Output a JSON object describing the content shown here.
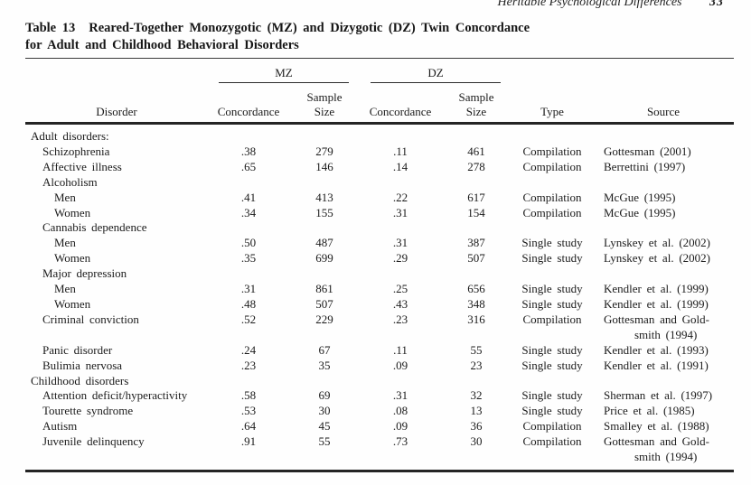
{
  "page": {
    "running_head": "Heritable Psychological Differences",
    "page_number": "33"
  },
  "table": {
    "title_label": "Table 13",
    "title_line1": "Reared-Together Monozygotic (MZ) and Dizygotic (DZ) Twin Concordance",
    "title_line2": "for Adult and Childhood Behavioral Disorders",
    "spanner_mz": "MZ",
    "spanner_dz": "DZ",
    "columns": {
      "disorder": "Disorder",
      "mz_concordance": "Concordance",
      "mz_sample_line1": "Sample",
      "mz_sample_line2": "Size",
      "dz_concordance": "Concordance",
      "dz_sample_line1": "Sample",
      "dz_sample_line2": "Size",
      "type": "Type",
      "source": "Source"
    },
    "rows": [
      {
        "kind": "section",
        "indent": 0,
        "label": "Adult disorders:"
      },
      {
        "kind": "data",
        "indent": 1,
        "label": "Schizophrenia",
        "mz_concordance": ".38",
        "mz_n": "279",
        "dz_concordance": ".11",
        "dz_n": "461",
        "type": "Compilation",
        "source_lines": [
          "Gottesman (2001)"
        ]
      },
      {
        "kind": "data",
        "indent": 1,
        "label": "Affective illness",
        "mz_concordance": ".65",
        "mz_n": "146",
        "dz_concordance": ".14",
        "dz_n": "278",
        "type": "Compilation",
        "source_lines": [
          "Berrettini (1997)"
        ]
      },
      {
        "kind": "group",
        "indent": 1,
        "label": "Alcoholism"
      },
      {
        "kind": "data",
        "indent": 2,
        "label": "Men",
        "mz_concordance": ".41",
        "mz_n": "413",
        "dz_concordance": ".22",
        "dz_n": "617",
        "type": "Compilation",
        "source_lines": [
          "McGue (1995)"
        ]
      },
      {
        "kind": "data",
        "indent": 2,
        "label": "Women",
        "mz_concordance": ".34",
        "mz_n": "155",
        "dz_concordance": ".31",
        "dz_n": "154",
        "type": "Compilation",
        "source_lines": [
          "McGue (1995)"
        ]
      },
      {
        "kind": "group",
        "indent": 1,
        "label": "Cannabis dependence"
      },
      {
        "kind": "data",
        "indent": 2,
        "label": "Men",
        "mz_concordance": ".50",
        "mz_n": "487",
        "dz_concordance": ".31",
        "dz_n": "387",
        "type": "Single study",
        "source_lines": [
          "Lynskey et al. (2002)"
        ]
      },
      {
        "kind": "data",
        "indent": 2,
        "label": "Women",
        "mz_concordance": ".35",
        "mz_n": "699",
        "dz_concordance": ".29",
        "dz_n": "507",
        "type": "Single study",
        "source_lines": [
          "Lynskey et al. (2002)"
        ]
      },
      {
        "kind": "group",
        "indent": 1,
        "label": "Major depression"
      },
      {
        "kind": "data",
        "indent": 2,
        "label": "Men",
        "mz_concordance": ".31",
        "mz_n": "861",
        "dz_concordance": ".25",
        "dz_n": "656",
        "type": "Single study",
        "source_lines": [
          "Kendler et al. (1999)"
        ]
      },
      {
        "kind": "data",
        "indent": 2,
        "label": "Women",
        "mz_concordance": ".48",
        "mz_n": "507",
        "dz_concordance": ".43",
        "dz_n": "348",
        "type": "Single study",
        "source_lines": [
          "Kendler et al. (1999)"
        ]
      },
      {
        "kind": "data",
        "indent": 1,
        "label": "Criminal conviction",
        "mz_concordance": ".52",
        "mz_n": "229",
        "dz_concordance": ".23",
        "dz_n": "316",
        "type": "Compilation",
        "source_lines": [
          "Gottesman and Gold-",
          "smith (1994)"
        ]
      },
      {
        "kind": "data",
        "indent": 1,
        "label": "Panic disorder",
        "mz_concordance": ".24",
        "mz_n": "67",
        "dz_concordance": ".11",
        "dz_n": "55",
        "type": "Single study",
        "source_lines": [
          "Kendler et al. (1993)"
        ]
      },
      {
        "kind": "data",
        "indent": 1,
        "label": "Bulimia nervosa",
        "mz_concordance": ".23",
        "mz_n": "35",
        "dz_concordance": ".09",
        "dz_n": "23",
        "type": "Single study",
        "source_lines": [
          "Kendler et al. (1991)"
        ]
      },
      {
        "kind": "section",
        "indent": 0,
        "label": "Childhood disorders"
      },
      {
        "kind": "data",
        "indent": 1,
        "label": "Attention deficit/hyperactivity",
        "mz_concordance": ".58",
        "mz_n": "69",
        "dz_concordance": ".31",
        "dz_n": "32",
        "type": "Single study",
        "source_lines": [
          "Sherman et al. (1997)"
        ]
      },
      {
        "kind": "data",
        "indent": 1,
        "label": "Tourette syndrome",
        "mz_concordance": ".53",
        "mz_n": "30",
        "dz_concordance": ".08",
        "dz_n": "13",
        "type": "Single study",
        "source_lines": [
          "Price et al. (1985)"
        ]
      },
      {
        "kind": "data",
        "indent": 1,
        "label": "Autism",
        "mz_concordance": ".64",
        "mz_n": "45",
        "dz_concordance": ".09",
        "dz_n": "36",
        "type": "Compilation",
        "source_lines": [
          "Smalley et al. (1988)"
        ]
      },
      {
        "kind": "data",
        "indent": 1,
        "label": "Juvenile delinquency",
        "mz_concordance": ".91",
        "mz_n": "55",
        "dz_concordance": ".73",
        "dz_n": "30",
        "type": "Compilation",
        "source_lines": [
          "Gottesman and Gold-",
          "smith (1994)"
        ]
      }
    ]
  }
}
